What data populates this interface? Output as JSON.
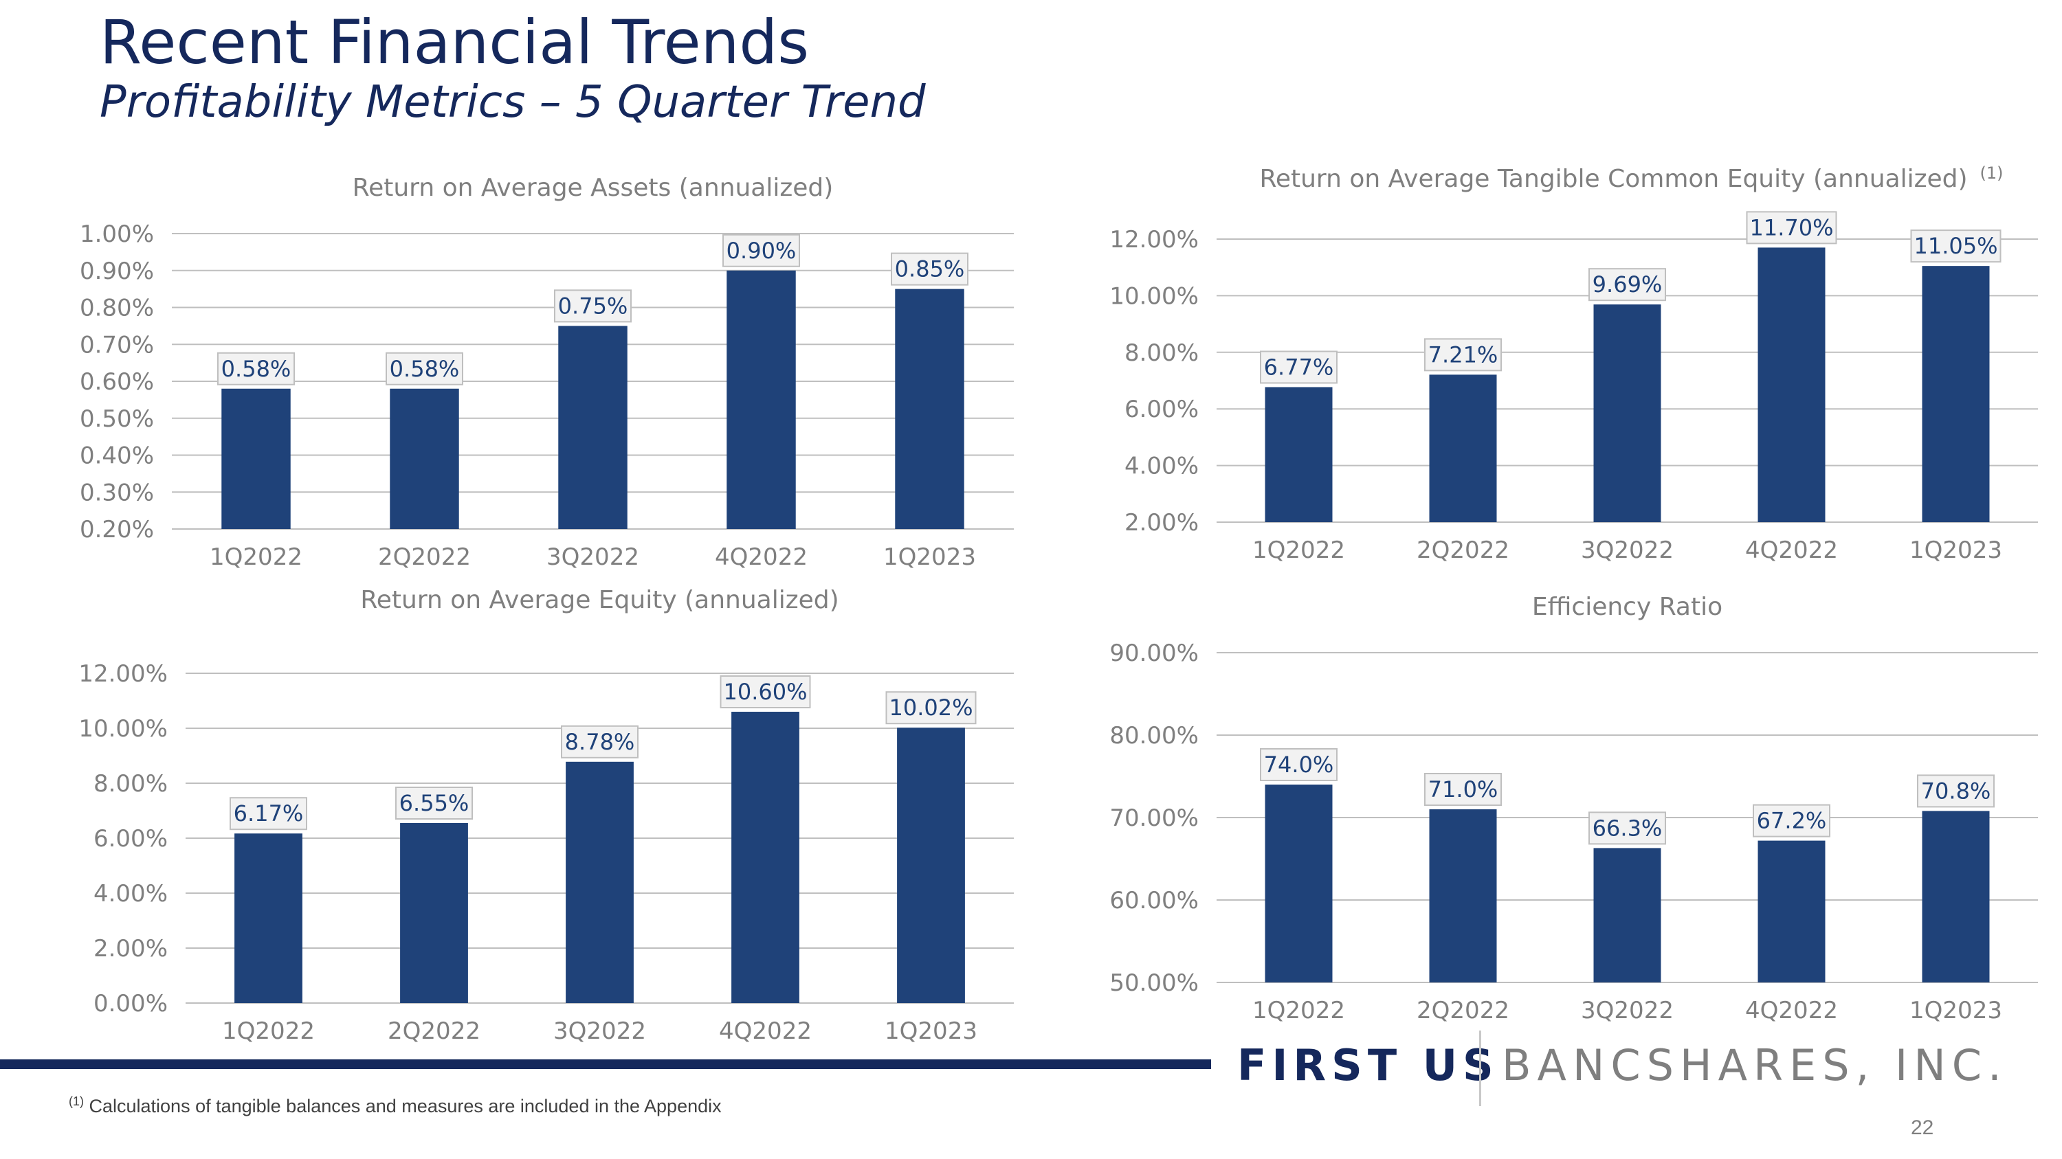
{
  "page": {
    "title": "Recent Financial Trends",
    "subtitle": "Profitability Metrics – 5 Quarter Trend",
    "logo_first": "FIRST US",
    "logo_bancshares": "BANCSHARES, INC.",
    "footnote_marker": "(1)",
    "footnote_text": " Calculations of tangible balances and measures are included in the Appendix",
    "page_number": "22"
  },
  "colors": {
    "bar": "#1f4279",
    "title": "#15285c",
    "axis_text": "#7f7f7f",
    "gridline": "#bfbfbf",
    "label_box": "#f2f2f2"
  },
  "chart_data": [
    {
      "id": "roaa",
      "type": "bar",
      "title": "Return on Average Assets (annualized)",
      "title_superscript": "",
      "categories": [
        "1Q2022",
        "2Q2022",
        "3Q2022",
        "4Q2022",
        "1Q2023"
      ],
      "values": [
        0.58,
        0.58,
        0.75,
        0.9,
        0.85
      ],
      "data_labels": [
        "0.58%",
        "0.58%",
        "0.75%",
        "0.90%",
        "0.85%"
      ],
      "yticks": [
        0.2,
        0.3,
        0.4,
        0.5,
        0.6,
        0.7,
        0.8,
        0.9,
        1.0
      ],
      "ytick_labels": [
        "0.20%",
        "0.30%",
        "0.40%",
        "0.50%",
        "0.60%",
        "0.70%",
        "0.80%",
        "0.90%",
        "1.00%"
      ],
      "ylim": [
        0.2,
        1.0
      ],
      "grid": true,
      "xlabel": "",
      "ylabel": ""
    },
    {
      "id": "rotce",
      "type": "bar",
      "title": "Return on Average Tangible Common Equity (annualized)",
      "title_superscript": "(1)",
      "categories": [
        "1Q2022",
        "2Q2022",
        "3Q2022",
        "4Q2022",
        "1Q2023"
      ],
      "values": [
        6.77,
        7.21,
        9.69,
        11.7,
        11.05
      ],
      "data_labels": [
        "6.77%",
        "7.21%",
        "9.69%",
        "11.70%",
        "11.05%"
      ],
      "yticks": [
        2.0,
        4.0,
        6.0,
        8.0,
        10.0,
        12.0
      ],
      "ytick_labels": [
        "2.00%",
        "4.00%",
        "6.00%",
        "8.00%",
        "10.00%",
        "12.00%"
      ],
      "ylim": [
        2.0,
        12.0
      ],
      "grid": true,
      "xlabel": "",
      "ylabel": ""
    },
    {
      "id": "roae",
      "type": "bar",
      "title": "Return on Average Equity (annualized)",
      "title_superscript": "",
      "categories": [
        "1Q2022",
        "2Q2022",
        "3Q2022",
        "4Q2022",
        "1Q2023"
      ],
      "values": [
        6.17,
        6.55,
        8.78,
        10.6,
        10.02
      ],
      "data_labels": [
        "6.17%",
        "6.55%",
        "8.78%",
        "10.60%",
        "10.02%"
      ],
      "yticks": [
        0.0,
        2.0,
        4.0,
        6.0,
        8.0,
        10.0,
        12.0
      ],
      "ytick_labels": [
        "0.00%",
        "2.00%",
        "4.00%",
        "6.00%",
        "8.00%",
        "10.00%",
        "12.00%"
      ],
      "ylim": [
        0.0,
        12.0
      ],
      "grid": true,
      "xlabel": "",
      "ylabel": ""
    },
    {
      "id": "eff",
      "type": "bar",
      "title": "Efficiency Ratio",
      "title_superscript": "",
      "categories": [
        "1Q2022",
        "2Q2022",
        "3Q2022",
        "4Q2022",
        "1Q2023"
      ],
      "values": [
        74.0,
        71.0,
        66.3,
        67.2,
        70.8
      ],
      "data_labels": [
        "74.0%",
        "71.0%",
        "66.3%",
        "67.2%",
        "70.8%"
      ],
      "yticks": [
        50.0,
        60.0,
        70.0,
        80.0,
        90.0
      ],
      "ytick_labels": [
        "50.00%",
        "60.00%",
        "70.00%",
        "80.00%",
        "90.00%"
      ],
      "ylim": [
        50.0,
        90.0
      ],
      "grid": true,
      "xlabel": "",
      "ylabel": ""
    }
  ]
}
